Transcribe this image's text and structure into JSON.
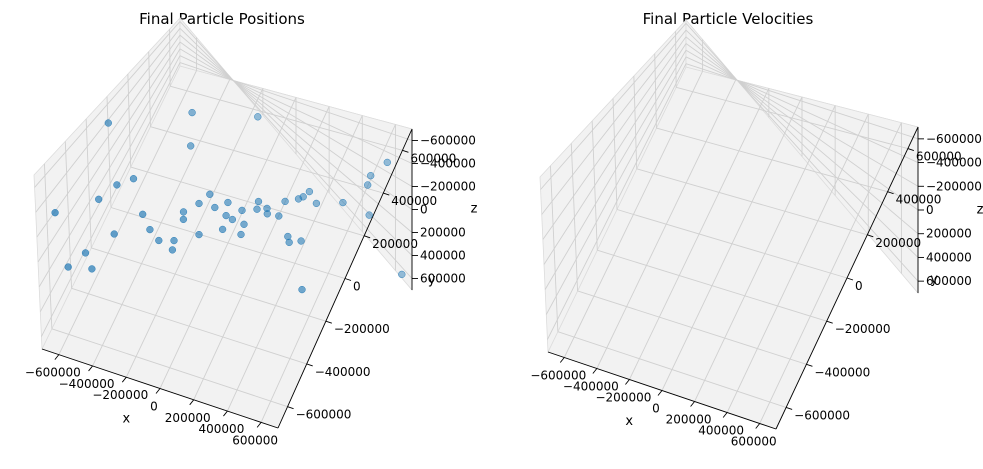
{
  "chart_data": [
    {
      "type": "scatter",
      "projection": "3d",
      "title": "Final Particle Positions",
      "xlabel": "x",
      "ylabel": "y",
      "zlabel": "z",
      "xlim": [
        -700000,
        700000
      ],
      "ylim": [
        -700000,
        700000
      ],
      "zlim": [
        -700000,
        700000
      ],
      "xticks": [
        "−600000",
        "−400000",
        "−200000",
        "0",
        "200000",
        "400000",
        "600000"
      ],
      "yticks": [
        "−600000",
        "−400000",
        "−200000",
        "0",
        "200000",
        "400000",
        "600000"
      ],
      "zticks": [
        "−600000",
        "−400000",
        "−200000",
        "0",
        "200000",
        "400000",
        "600000"
      ],
      "grid": true,
      "marker_color": "#1f77b4",
      "series": [
        {
          "points": [
            [
              -650000,
              -600000,
              310000
            ],
            [
              -620000,
              -120000,
              650000
            ],
            [
              -380000,
              300000,
              680000
            ],
            [
              -300000,
              150000,
              450000
            ],
            [
              -200000,
              650000,
              600000
            ],
            [
              -560000,
              -330000,
              150000
            ],
            [
              -480000,
              -280000,
              300000
            ],
            [
              -430000,
              -200000,
              310000
            ],
            [
              -650000,
              -500000,
              -300000
            ],
            [
              -620000,
              -380000,
              -350000
            ],
            [
              -560000,
              -420000,
              -400000
            ],
            [
              -400000,
              -450000,
              80000
            ],
            [
              -320000,
              -300000,
              140000
            ],
            [
              -280000,
              -300000,
              0
            ],
            [
              -260000,
              -250000,
              -200000
            ],
            [
              -200000,
              -200000,
              -250000
            ],
            [
              -200000,
              -100000,
              -50000
            ],
            [
              -130000,
              -60000,
              100000
            ],
            [
              -100000,
              0,
              200000
            ],
            [
              -60000,
              -20000,
              50000
            ],
            [
              -30000,
              60000,
              0
            ],
            [
              0,
              -10000,
              -40000
            ],
            [
              60000,
              50000,
              40000
            ],
            [
              100000,
              0,
              -80000
            ],
            [
              120000,
              100000,
              80000
            ],
            [
              150000,
              150000,
              -20000
            ],
            [
              200000,
              250000,
              150000
            ],
            [
              220000,
              150000,
              -120000
            ],
            [
              300000,
              400000,
              300000
            ],
            [
              0,
              50000,
              -350000
            ],
            [
              80000,
              0,
              -380000
            ],
            [
              150000,
              150000,
              -360000
            ],
            [
              -80000,
              -150000,
              -150000
            ],
            [
              20000,
              -80000,
              -100000
            ],
            [
              100000,
              150000,
              100000
            ],
            [
              250000,
              350000,
              100000
            ],
            [
              250000,
              300000,
              -150000
            ],
            [
              400000,
              500000,
              150000
            ],
            [
              500000,
              600000,
              250000
            ],
            [
              480000,
              650000,
              -150000
            ],
            [
              520000,
              550000,
              -250000
            ],
            [
              580000,
              650000,
              -400000
            ],
            [
              650000,
              680000,
              650000
            ],
            [
              200000,
              500000,
              550000
            ],
            [
              300000,
              100000,
              -650000
            ],
            [
              320000,
              80000,
              -700000
            ],
            [
              380000,
              100000,
              -680000
            ],
            [
              500000,
              -100000,
              -800000
            ],
            [
              -180000,
              -250000,
              -250000
            ],
            [
              -140000,
              -200000,
              100000
            ]
          ]
        }
      ]
    },
    {
      "type": "scatter",
      "projection": "3d",
      "title": "Final Particle Velocities",
      "xlabel": "x",
      "ylabel": "y",
      "zlabel": "z",
      "xlim": [
        -700000,
        700000
      ],
      "ylim": [
        -700000,
        700000
      ],
      "zlim": [
        -700000,
        700000
      ],
      "xticks": [
        "−600000",
        "−400000",
        "−200000",
        "0",
        "200000",
        "400000",
        "600000"
      ],
      "yticks": [
        "−600000",
        "−400000",
        "−200000",
        "0",
        "200000",
        "400000",
        "600000"
      ],
      "zticks": [
        "−600000",
        "−400000",
        "−200000",
        "0",
        "200000",
        "400000",
        "600000"
      ],
      "grid": true,
      "marker_color": "#1f77b4",
      "series": [
        {
          "points": []
        }
      ]
    }
  ]
}
